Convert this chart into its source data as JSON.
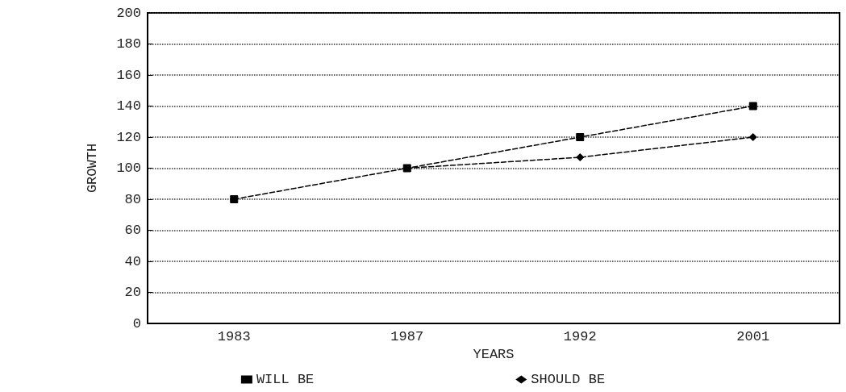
{
  "chart_data": {
    "type": "line",
    "xlabel": "YEARS",
    "ylabel": "GROWTH",
    "categories": [
      "1983",
      "1987",
      "1992",
      "2001"
    ],
    "series": [
      {
        "name": "WILL BE",
        "color": "#000000",
        "marker": "square",
        "values": [
          80,
          100,
          120,
          140
        ]
      },
      {
        "name": "SHOULD BE",
        "color": "#000000",
        "marker": "diamond",
        "values": [
          null,
          100,
          107,
          120
        ]
      }
    ],
    "ylim": [
      0,
      200
    ],
    "yticks": [
      0,
      20,
      40,
      60,
      80,
      100,
      120,
      140,
      160,
      180,
      200
    ],
    "grid": "y",
    "legend": "bottom",
    "line_style": "dashed"
  }
}
